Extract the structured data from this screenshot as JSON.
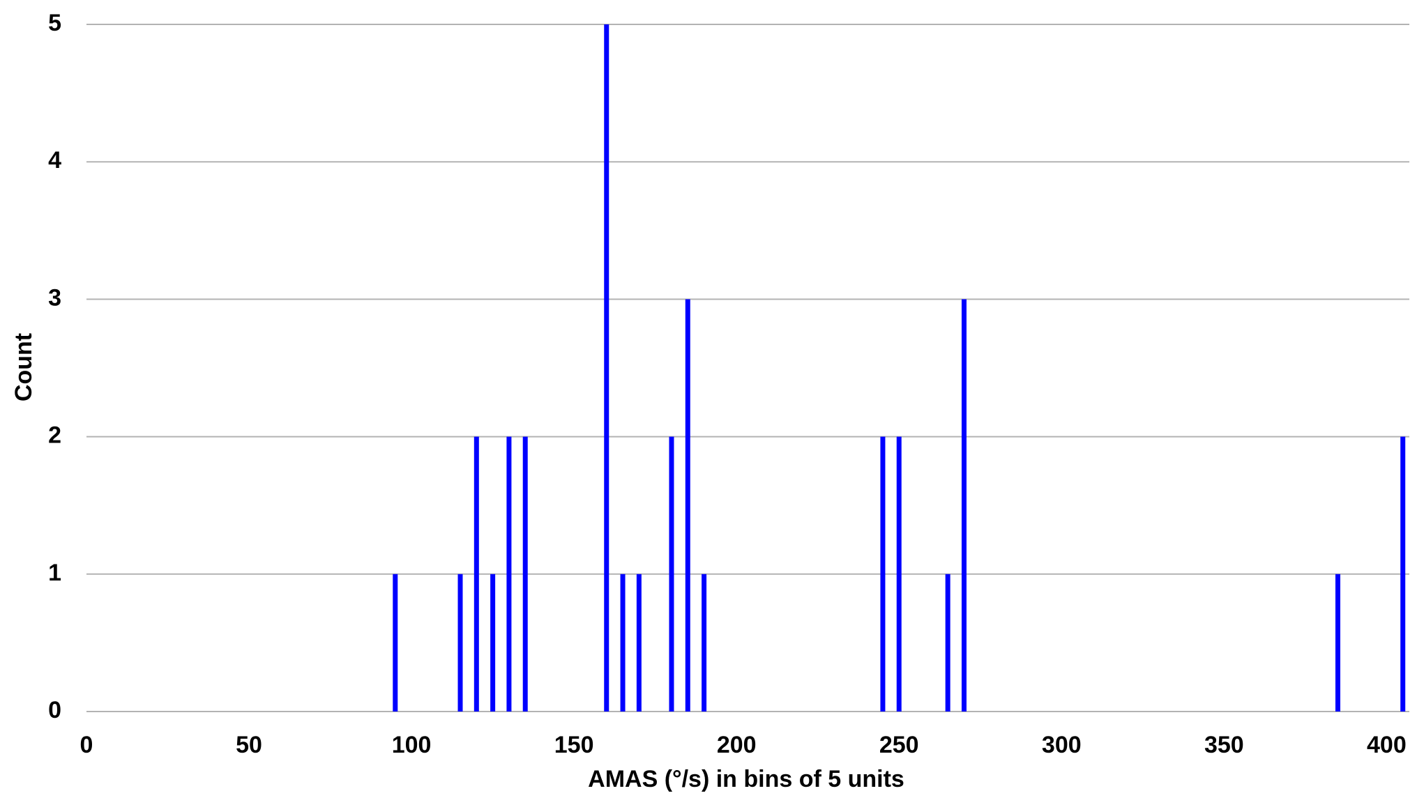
{
  "chart_data": {
    "type": "bar",
    "x_label": "AMAS (°/s) in bins of 5 units",
    "y_label": "Count",
    "x": [
      95,
      115,
      120,
      125,
      130,
      135,
      160,
      165,
      170,
      180,
      185,
      190,
      245,
      250,
      265,
      270,
      385,
      405
    ],
    "values": [
      1,
      1,
      2,
      1,
      2,
      2,
      5,
      1,
      1,
      2,
      3,
      1,
      2,
      2,
      1,
      3,
      1,
      2
    ],
    "color": "#0000ff",
    "xlim": [
      0,
      407
    ],
    "xticks": [
      0,
      50,
      100,
      150,
      200,
      250,
      300,
      350,
      400
    ],
    "ylim": [
      0,
      5
    ],
    "yticks": [
      0,
      1,
      2,
      3,
      4,
      5
    ],
    "grid": true
  }
}
